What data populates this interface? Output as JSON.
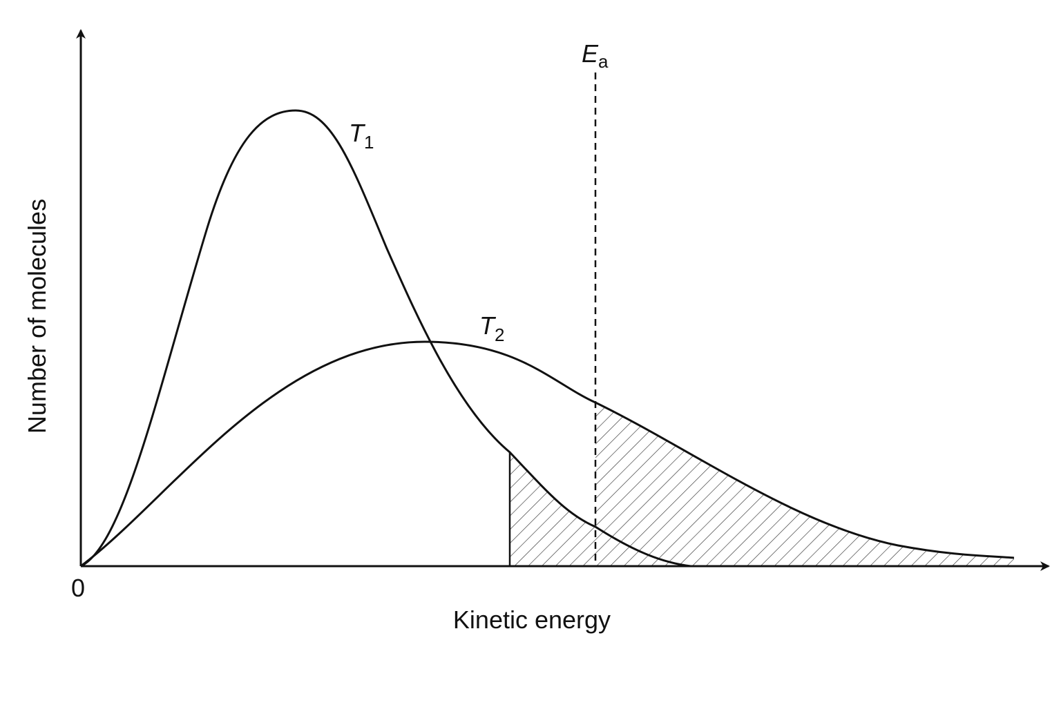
{
  "axes": {
    "origin": "0",
    "x_label": "Kinetic energy",
    "y_label": "Number of molecules"
  },
  "curves": [
    {
      "main": "T",
      "sub": "1"
    },
    {
      "main": "T",
      "sub": "2"
    }
  ],
  "threshold": {
    "main": "E",
    "sub": "a"
  }
}
